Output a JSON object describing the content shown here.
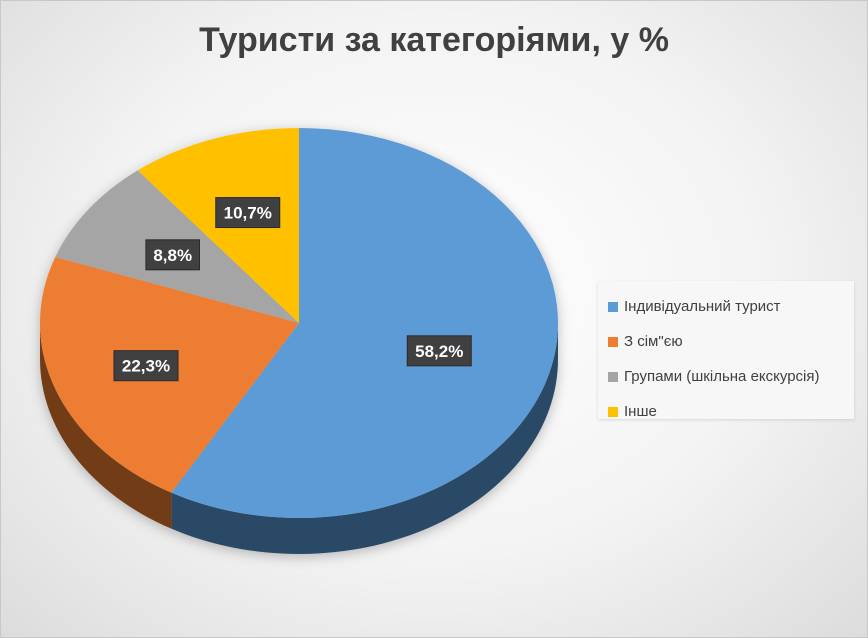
{
  "chart_data": {
    "type": "pie",
    "title": "Туристи за категоріями, у %",
    "categories": [
      "Індивідуальний турист",
      "З сім\"єю",
      "Групами (шкільна екскурсія)",
      "Інше"
    ],
    "values": [
      58.2,
      22.3,
      8.8,
      10.7
    ],
    "value_labels": [
      "58,2%",
      "22,3%",
      "8,8%",
      "10,7%"
    ],
    "colors": [
      "#5b9bd5",
      "#ed7d31",
      "#a5a5a5",
      "#ffc000"
    ],
    "legend_position": "right",
    "style": "3d"
  }
}
